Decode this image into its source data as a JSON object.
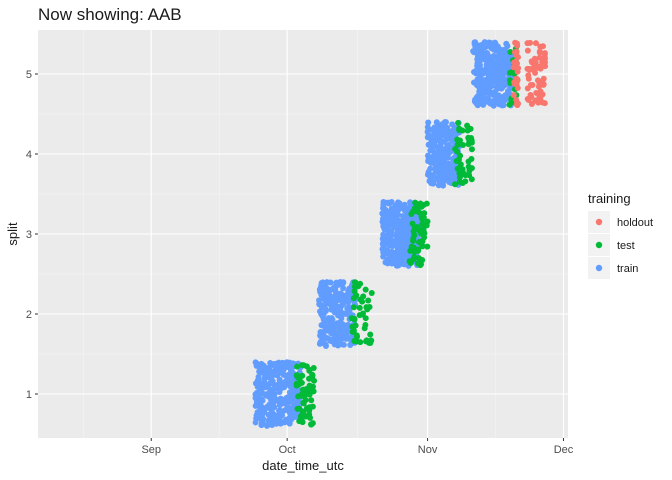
{
  "chart_data": {
    "type": "scatter",
    "title": "Now showing: AAB",
    "xlabel": "date_time_utc",
    "ylabel": "split",
    "x_axis": {
      "type": "date",
      "range": [
        "2021-08-07",
        "2021-12-02"
      ],
      "ticks": [
        {
          "date": "2021-09-01",
          "label": "Sep"
        },
        {
          "date": "2021-10-01",
          "label": "Oct"
        },
        {
          "date": "2021-11-01",
          "label": "Nov"
        },
        {
          "date": "2021-12-01",
          "label": "Dec"
        }
      ]
    },
    "y_axis": {
      "range": [
        0.45,
        5.55
      ],
      "ticks": [
        1,
        2,
        3,
        4,
        5
      ]
    },
    "grid": true,
    "jitter": 0.4,
    "legend": {
      "title": "training",
      "position": "right",
      "entries": [
        {
          "name": "holdout",
          "color": "#F8766D"
        },
        {
          "name": "test",
          "color": "#00BA38"
        },
        {
          "name": "train",
          "color": "#619CFF"
        }
      ]
    },
    "series": [
      {
        "name": "train",
        "color": "#619CFF",
        "blocks": [
          {
            "split": 1,
            "x_start": "2021-09-24",
            "x_end": "2021-10-04",
            "count": 300
          },
          {
            "split": 2,
            "x_start": "2021-10-08",
            "x_end": "2021-10-16",
            "count": 260
          },
          {
            "split": 3,
            "x_start": "2021-10-22",
            "x_end": "2021-10-30",
            "count": 300
          },
          {
            "split": 4,
            "x_start": "2021-11-01",
            "x_end": "2021-11-08",
            "count": 260
          },
          {
            "split": 5,
            "x_start": "2021-11-11",
            "x_end": "2021-11-20",
            "count": 300
          }
        ]
      },
      {
        "name": "test",
        "color": "#00BA38",
        "blocks": [
          {
            "split": 1,
            "x_start": "2021-10-03",
            "x_end": "2021-10-07",
            "count": 60
          },
          {
            "split": 2,
            "x_start": "2021-10-15",
            "x_end": "2021-10-20",
            "count": 45
          },
          {
            "split": 3,
            "x_start": "2021-10-28",
            "x_end": "2021-11-01",
            "count": 60
          },
          {
            "split": 4,
            "x_start": "2021-11-07",
            "x_end": "2021-11-11",
            "count": 45
          },
          {
            "split": 5,
            "x_start": "2021-11-19",
            "x_end": "2021-11-21",
            "count": 20
          }
        ]
      },
      {
        "name": "holdout",
        "color": "#F8766D",
        "blocks": [
          {
            "split": 5,
            "x_start": "2021-11-20",
            "x_end": "2021-11-21",
            "count": 25
          },
          {
            "split": 5,
            "x_start": "2021-11-23",
            "x_end": "2021-11-27",
            "count": 60
          }
        ]
      }
    ]
  }
}
